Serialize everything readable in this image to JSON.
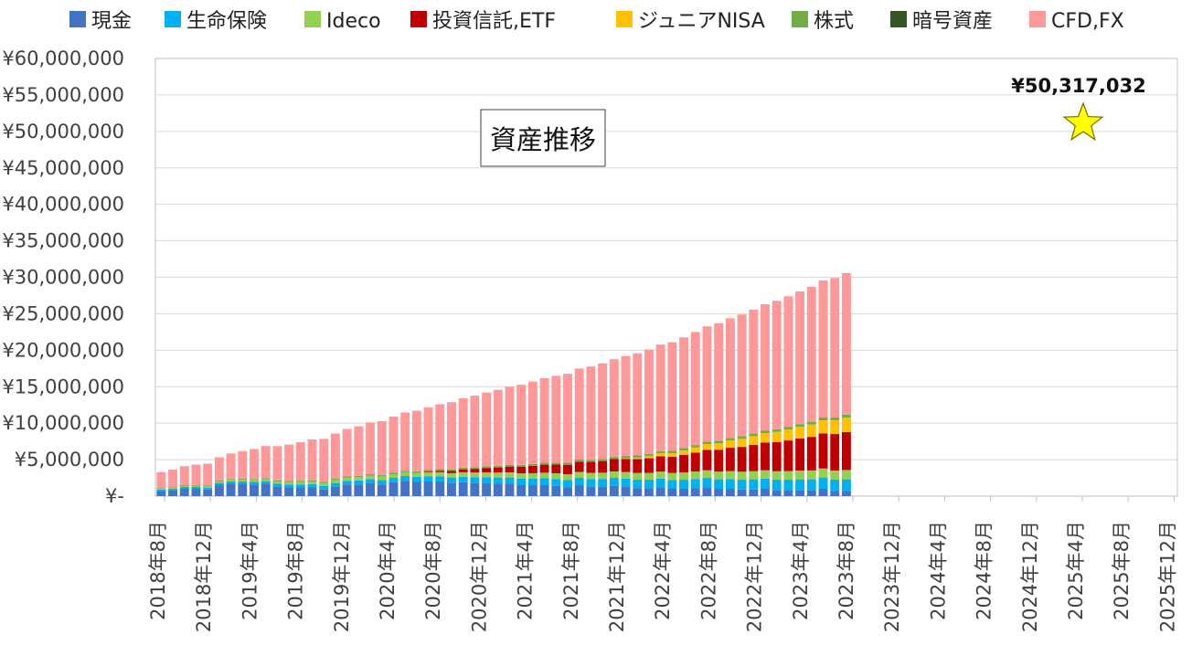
{
  "chart_data": {
    "type": "bar",
    "stacked": true,
    "title": "資産推移",
    "xlabel": "",
    "ylabel": "",
    "ylim": [
      0,
      60000000
    ],
    "y_ticks": [
      "¥-",
      "¥5,000,000",
      "¥10,000,000",
      "¥15,000,000",
      "¥20,000,000",
      "¥25,000,000",
      "¥30,000,000",
      "¥35,000,000",
      "¥40,000,000",
      "¥45,000,000",
      "¥50,000,000",
      "¥55,000,000",
      "¥60,000,000"
    ],
    "x_tick_labels": [
      "2018年8月",
      "2018年12月",
      "2019年4月",
      "2019年8月",
      "2019年12月",
      "2020年4月",
      "2020年8月",
      "2020年12月",
      "2021年4月",
      "2021年8月",
      "2021年12月",
      "2022年4月",
      "2022年8月",
      "2022年12月",
      "2023年4月",
      "2023年8月",
      "2023年12月",
      "2024年4月",
      "2024年8月",
      "2024年12月",
      "2025年4月",
      "2025年8月",
      "2025年12月"
    ],
    "grid": true,
    "legend_position": "top",
    "annotation": {
      "text": "¥50,317,032",
      "marker": "star"
    },
    "colors": [
      "#4472C4",
      "#00B0F0",
      "#92D050",
      "#C00000",
      "#FFC000",
      "#70AD47",
      "#375623",
      "#FF9999"
    ],
    "series": [
      {
        "name": "現金",
        "values": [
          700000,
          800000,
          1000000,
          1000000,
          900000,
          1500000,
          1700000,
          1700000,
          1600000,
          1700000,
          1300000,
          1200000,
          1200000,
          1200000,
          900000,
          1300000,
          1600000,
          1600000,
          1800000,
          1600000,
          1900000,
          2100000,
          2000000,
          2000000,
          2000000,
          1800000,
          1900000,
          1800000,
          1800000,
          1700000,
          1700000,
          1500000,
          1500000,
          1500000,
          1400000,
          1200000,
          1500000,
          1300000,
          1300000,
          1400000,
          1300000,
          1100000,
          1100000,
          1200000,
          1000000,
          1000000,
          1100000,
          1200000,
          1000000,
          1000000,
          900000,
          900000,
          1000000,
          800000,
          800000,
          800000,
          800000,
          1000000,
          700000,
          700000
        ]
      },
      {
        "name": "生命保険",
        "values": [
          200000,
          200000,
          250000,
          250000,
          250000,
          300000,
          300000,
          300000,
          350000,
          350000,
          400000,
          400000,
          400000,
          450000,
          500000,
          500000,
          500000,
          550000,
          550000,
          600000,
          600000,
          650000,
          650000,
          700000,
          700000,
          750000,
          750000,
          800000,
          800000,
          850000,
          850000,
          900000,
          900000,
          950000,
          950000,
          1000000,
          1000000,
          1050000,
          1050000,
          1100000,
          1100000,
          1150000,
          1150000,
          1200000,
          1200000,
          1250000,
          1250000,
          1300000,
          1300000,
          1350000,
          1350000,
          1400000,
          1400000,
          1450000,
          1450000,
          1500000,
          1500000,
          1550000,
          1550000,
          1600000
        ]
      },
      {
        "name": "Ideco",
        "values": [
          100000,
          120000,
          140000,
          160000,
          180000,
          200000,
          220000,
          240000,
          260000,
          280000,
          300000,
          320000,
          340000,
          360000,
          380000,
          400000,
          420000,
          440000,
          460000,
          480000,
          500000,
          520000,
          540000,
          560000,
          580000,
          600000,
          620000,
          640000,
          660000,
          680000,
          700000,
          720000,
          740000,
          760000,
          780000,
          800000,
          820000,
          840000,
          860000,
          880000,
          900000,
          920000,
          940000,
          960000,
          980000,
          1000000,
          1020000,
          1040000,
          1060000,
          1080000,
          1100000,
          1120000,
          1140000,
          1160000,
          1180000,
          1200000,
          1220000,
          1240000,
          1260000,
          1280000
        ]
      },
      {
        "name": "投資信託,ETF",
        "values": [
          0,
          0,
          0,
          0,
          0,
          0,
          0,
          0,
          0,
          0,
          0,
          0,
          0,
          0,
          0,
          0,
          0,
          0,
          0,
          0,
          0,
          0,
          0,
          100000,
          200000,
          300000,
          400000,
          500000,
          600000,
          700000,
          800000,
          900000,
          1000000,
          1100000,
          1200000,
          1300000,
          1400000,
          1500000,
          1600000,
          1700000,
          1800000,
          1900000,
          2000000,
          2100000,
          2200000,
          2400000,
          2600000,
          2800000,
          3000000,
          3200000,
          3400000,
          3600000,
          3800000,
          4000000,
          4200000,
          4400000,
          4600000,
          4800000,
          5000000,
          5200000
        ]
      },
      {
        "name": "ジュニアNISA",
        "values": [
          0,
          0,
          0,
          0,
          0,
          0,
          0,
          0,
          0,
          0,
          0,
          0,
          0,
          0,
          0,
          0,
          0,
          0,
          0,
          0,
          0,
          0,
          0,
          0,
          0,
          0,
          0,
          0,
          0,
          0,
          0,
          0,
          0,
          0,
          0,
          0,
          0,
          0,
          0,
          0,
          100000,
          200000,
          300000,
          400000,
          500000,
          600000,
          700000,
          800000,
          900000,
          1000000,
          1100000,
          1200000,
          1300000,
          1400000,
          1500000,
          1600000,
          1700000,
          1800000,
          1900000,
          2000000
        ]
      },
      {
        "name": "株式",
        "values": [
          100000,
          100000,
          110000,
          110000,
          120000,
          120000,
          130000,
          130000,
          140000,
          140000,
          150000,
          150000,
          160000,
          160000,
          170000,
          170000,
          180000,
          180000,
          190000,
          190000,
          200000,
          200000,
          210000,
          210000,
          220000,
          220000,
          230000,
          230000,
          240000,
          240000,
          250000,
          250000,
          260000,
          260000,
          270000,
          270000,
          280000,
          280000,
          290000,
          290000,
          300000,
          300000,
          310000,
          310000,
          320000,
          320000,
          330000,
          330000,
          340000,
          340000,
          350000,
          350000,
          360000,
          360000,
          370000,
          370000,
          380000,
          380000,
          390000,
          390000
        ]
      },
      {
        "name": "暗号資産",
        "values": [
          0,
          0,
          0,
          0,
          0,
          0,
          0,
          0,
          0,
          0,
          0,
          0,
          0,
          0,
          0,
          0,
          0,
          0,
          0,
          0,
          0,
          0,
          0,
          0,
          0,
          0,
          0,
          0,
          0,
          0,
          0,
          0,
          0,
          0,
          0,
          0,
          0,
          0,
          0,
          0,
          0,
          0,
          0,
          0,
          0,
          0,
          0,
          0,
          0,
          0,
          0,
          0,
          0,
          0,
          0,
          0,
          0,
          0,
          0,
          0
        ]
      },
      {
        "name": "CFD,FX",
        "values": [
          2200000,
          2400000,
          2600000,
          2800000,
          3000000,
          3200000,
          3500000,
          3800000,
          4100000,
          4400000,
          4700000,
          5000000,
          5300000,
          5600000,
          5900000,
          6200000,
          6500000,
          6800000,
          7100000,
          7400000,
          7700000,
          8000000,
          8300000,
          8600000,
          8900000,
          9200000,
          9500000,
          9800000,
          10100000,
          10400000,
          10700000,
          11000000,
          11300000,
          11600000,
          11900000,
          12200000,
          12500000,
          12800000,
          13100000,
          13400000,
          13700000,
          14000000,
          14300000,
          14600000,
          14900000,
          15200000,
          15500000,
          15800000,
          16100000,
          16400000,
          16700000,
          17000000,
          17300000,
          17600000,
          17900000,
          18200000,
          18500000,
          18800000,
          19100000,
          19400000
        ]
      }
    ],
    "categories_count": 60
  }
}
